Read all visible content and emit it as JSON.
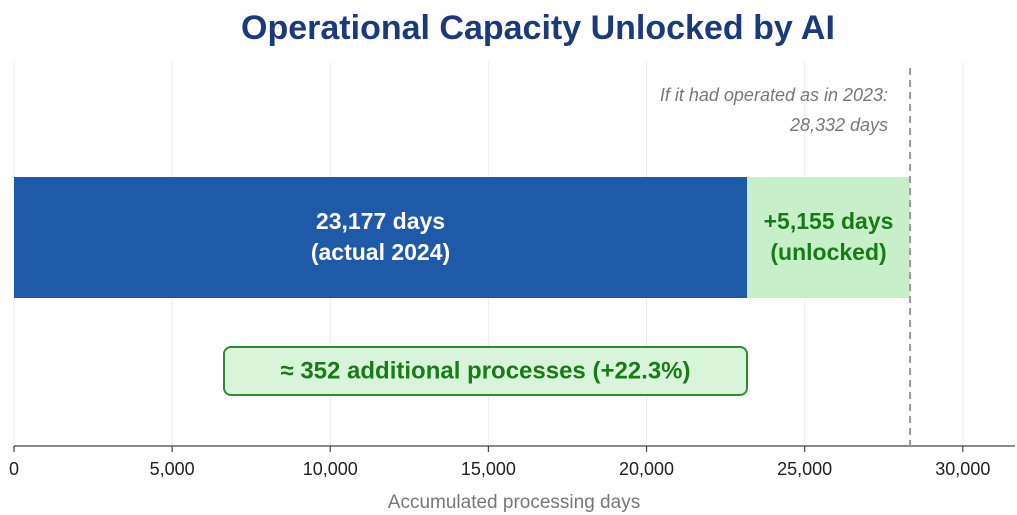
{
  "chart_data": {
    "type": "stacked_barh",
    "title": "Operational Capacity Unlocked by AI",
    "x_label": "Accumulated processing days",
    "series": [
      {
        "name": "(actual 2024)",
        "color": "#1f5aa8",
        "values": [
          23177
        ],
        "value_labels": [
          "23,177 days"
        ]
      },
      {
        "name": "(unlocked)",
        "color": "#c8f0c8",
        "values": [
          5155
        ],
        "value_labels": [
          "+5,155 days"
        ]
      }
    ],
    "xlim": [
      0,
      31650
    ],
    "xticks": [
      0,
      {
        "value": 5000,
        "label": "5,000"
      },
      {
        "value": 10000,
        "label": "10,000"
      },
      {
        "value": 15000,
        "label": "15,000"
      },
      {
        "value": 20000,
        "label": "20,000"
      },
      {
        "value": 25000,
        "label": "25,000"
      },
      {
        "value": 30000,
        "label": "30,000"
      }
    ],
    "grid": true,
    "reference_line": {
      "value": 28332,
      "label_lines": [
        "If it had operated as in 2023:",
        "28,332 days"
      ]
    },
    "callout": "≈ 352 additional processes (+22.3%)"
  }
}
